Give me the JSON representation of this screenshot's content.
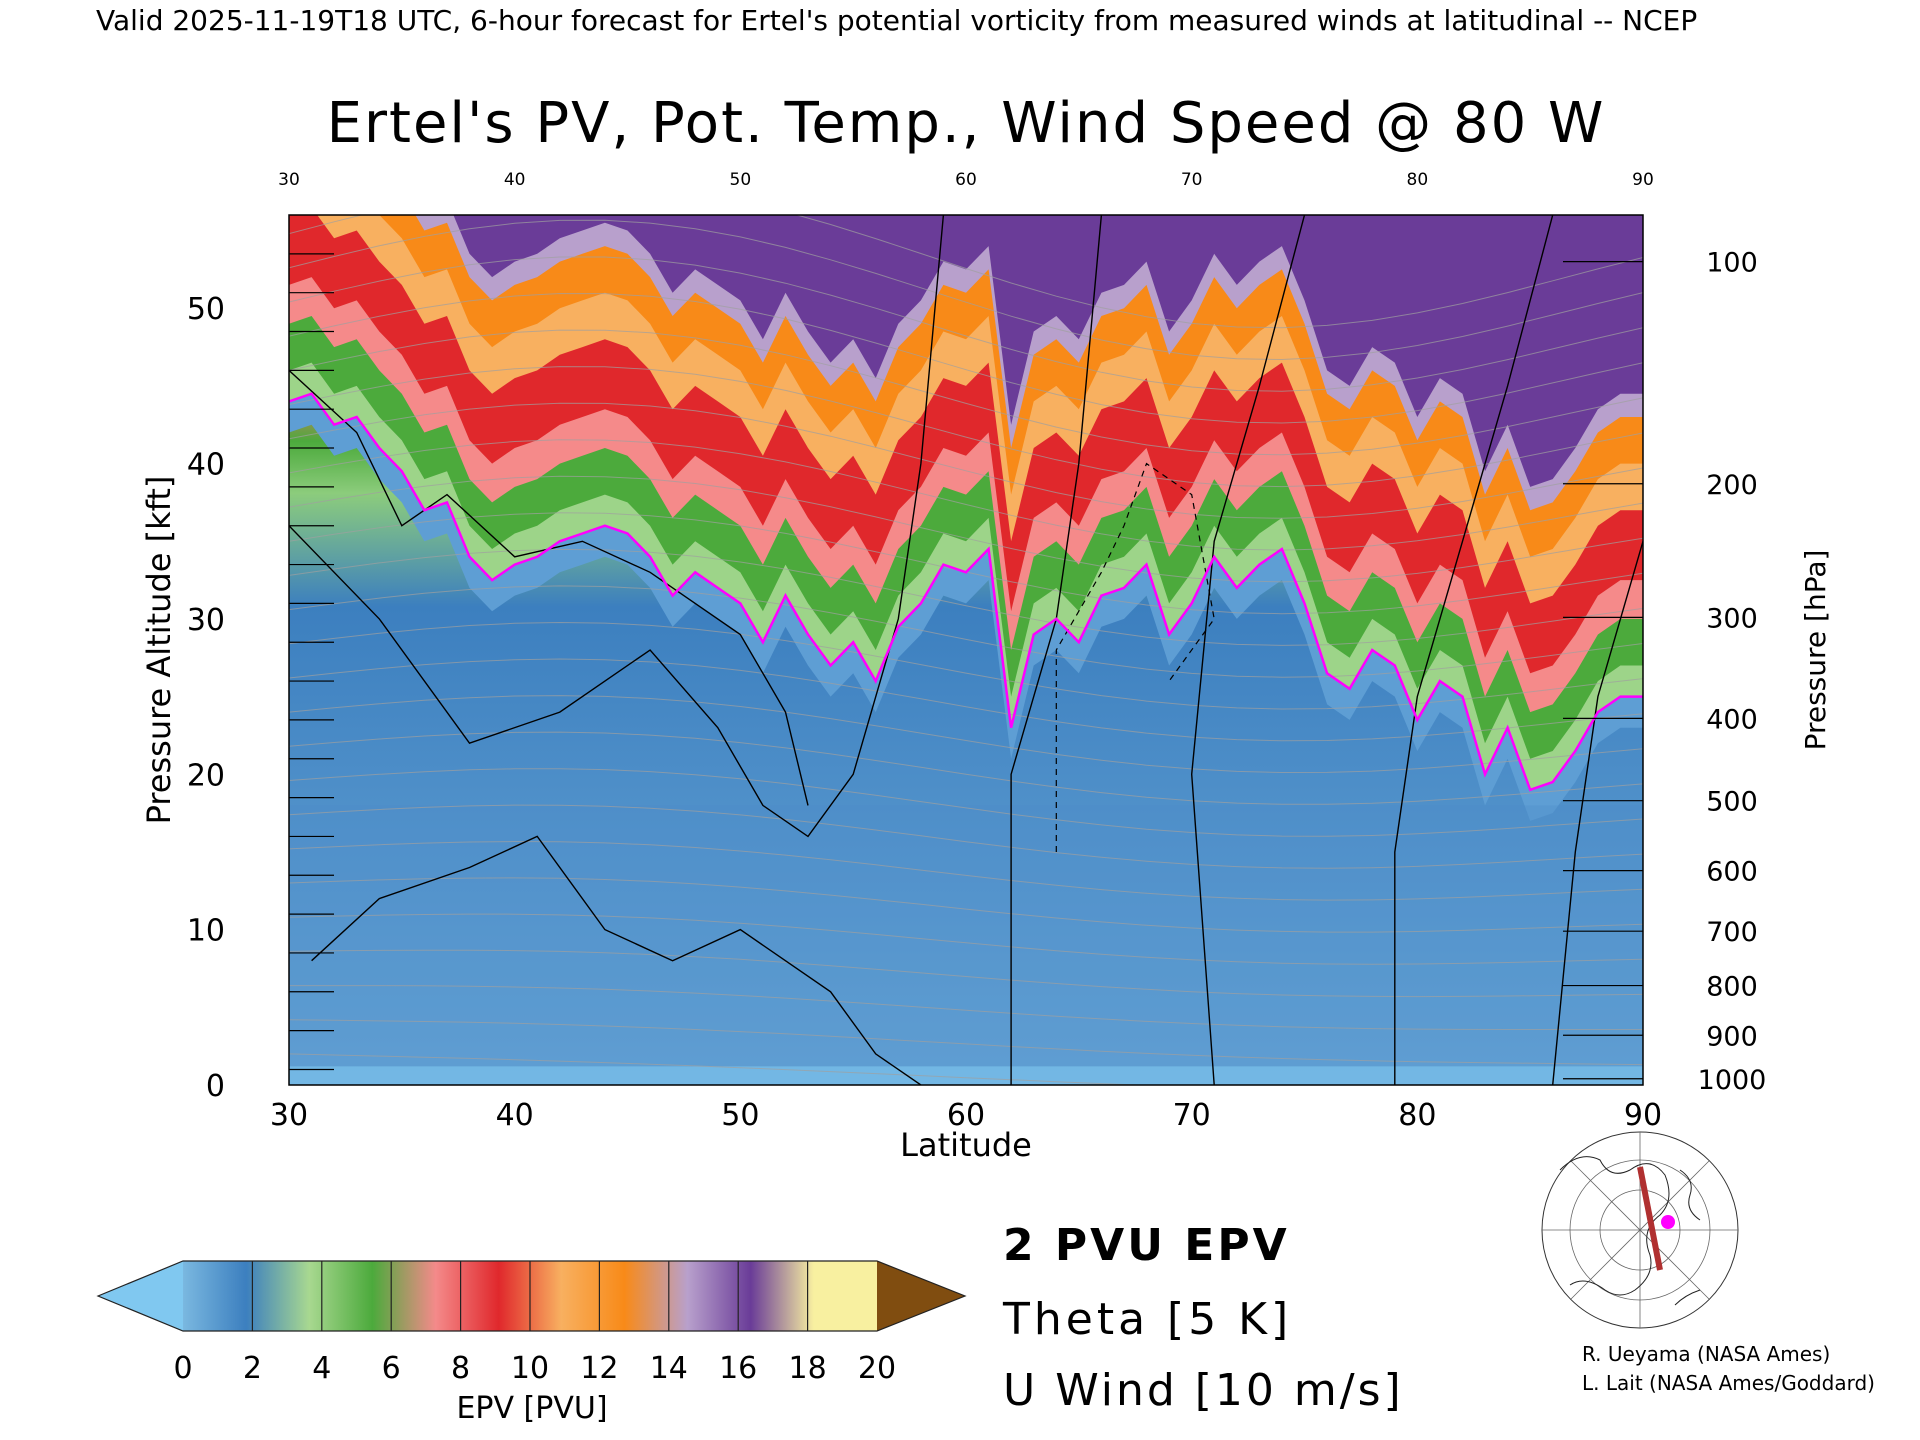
{
  "header": {
    "valid_line": "Valid 2025-11-19T18 UTC, 6-hour forecast for Ertel's potential vorticity from measured winds at latitudinal -- NCEP"
  },
  "chart_data": {
    "type": "heatmap",
    "title": "Ertel's PV, Pot. Temp., Wind Speed @ 80 W",
    "xlabel": "Latitude",
    "ylabel_left": "Pressure Altitude [kft]",
    "ylabel_right": "Pressure [hPa]",
    "xlim": [
      30,
      90
    ],
    "ylim": [
      0,
      56
    ],
    "x_ticks": [
      30,
      40,
      50,
      60,
      70,
      80,
      90
    ],
    "y_ticks_left": [
      0,
      10,
      20,
      30,
      40,
      50
    ],
    "y_ticks_right": [
      {
        "label": "100",
        "kft": 53.0
      },
      {
        "label": "200",
        "kft": 38.7
      },
      {
        "label": "300",
        "kft": 30.1
      },
      {
        "label": "400",
        "kft": 23.6
      },
      {
        "label": "500",
        "kft": 18.3
      },
      {
        "label": "600",
        "kft": 13.8
      },
      {
        "label": "700",
        "kft": 9.9
      },
      {
        "label": "800",
        "kft": 6.4
      },
      {
        "label": "900",
        "kft": 3.2
      },
      {
        "label": "1000",
        "kft": 0.4
      }
    ],
    "colorbar": {
      "label": "EPV [PVU]",
      "ticks": [
        0,
        2,
        4,
        6,
        8,
        10,
        12,
        14,
        16,
        18,
        20
      ],
      "colors": [
        "#7ab8e0",
        "#3c7fbf",
        "#a8d890",
        "#4caa3c",
        "#f48a8a",
        "#e0282c",
        "#f8b060",
        "#f88a18",
        "#b8a0cc",
        "#6a3c98",
        "#f8f0a0"
      ],
      "under_color": "#80c8f0",
      "over_color": "#804d10"
    },
    "legend": [
      {
        "label": "2 PVU EPV",
        "color": "#ff00ff"
      },
      {
        "label": "Theta [5 K]",
        "color": "#a0a0a0"
      },
      {
        "label": "U Wind [10 m/s]",
        "color": "#000000"
      }
    ],
    "series": [
      {
        "name": "2 PVU EPV",
        "lat": [
          30,
          31,
          32,
          33,
          34,
          35,
          36,
          37,
          38,
          39,
          40,
          41,
          42,
          43,
          44,
          45,
          46,
          47,
          48,
          49,
          50,
          51,
          52,
          53,
          54,
          55,
          56,
          57,
          58,
          59,
          60,
          61,
          62,
          63,
          64,
          65,
          66,
          67,
          68,
          69,
          70,
          71,
          72,
          73,
          74,
          75,
          76,
          77,
          78,
          79,
          80,
          81,
          82,
          83,
          84,
          85,
          86,
          87,
          88,
          89,
          90
        ],
        "kft": [
          44,
          44.5,
          42.5,
          43,
          41,
          39.5,
          37,
          37.5,
          34,
          32.5,
          33.5,
          34,
          35,
          35.5,
          36,
          35.5,
          34,
          31.5,
          33,
          32,
          31,
          28.5,
          31.5,
          29,
          27,
          28.5,
          26,
          29.5,
          31,
          33.5,
          33,
          34.5,
          23,
          29,
          30,
          28.5,
          31.5,
          32,
          33.5,
          29,
          31,
          34,
          32,
          33.5,
          34.5,
          31,
          26.5,
          25.5,
          28,
          27,
          23.5,
          26,
          25,
          20,
          23,
          19,
          19.5,
          21.5,
          24,
          25,
          25
        ]
      }
    ],
    "tick_label_grid": "black"
  },
  "credits": {
    "line1": "R. Ueyama (NASA Ames)",
    "line2": "L. Lait (NASA Ames/Goddard)"
  },
  "map_inset": {
    "track": "80 W",
    "track_color": "#b03030",
    "marker_color": "#ff00ff"
  }
}
